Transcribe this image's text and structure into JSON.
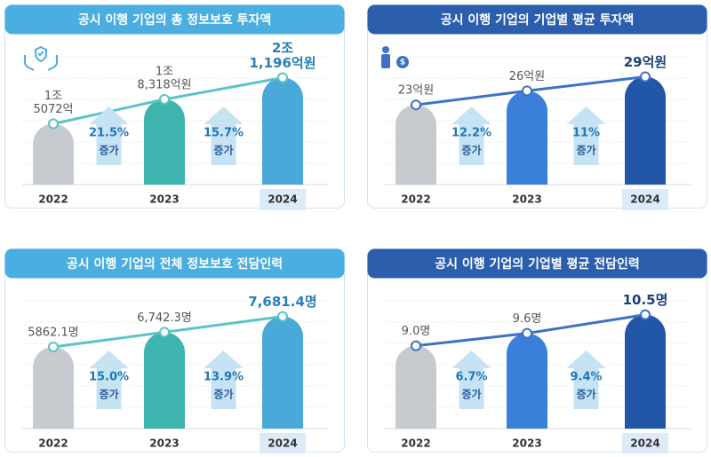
{
  "chart_data": [
    {
      "type": "bar",
      "title": "공시 이행 기업의 총 정보보호 투자액",
      "title_color": "#4aaee0",
      "line_color": "#5cc3c8",
      "highlight_color": "#2a7fb8",
      "categories": [
        "2022",
        "2023",
        "2024"
      ],
      "values": [
        15072,
        18318,
        21196
      ],
      "value_labels": [
        [
          "1조",
          "5072억"
        ],
        [
          "1조",
          "8,318억원"
        ],
        [
          "2조",
          "1,196억원"
        ]
      ],
      "colors": [
        "#c7cacf",
        "#3db5ae",
        "#4aa9d9"
      ],
      "ylim": [
        7000,
        23500
      ],
      "annotations": [
        {
          "text": "21.5%",
          "label": "증가"
        },
        {
          "text": "15.7%",
          "label": "증가"
        }
      ]
    },
    {
      "type": "bar",
      "title": "공시 이행 기업의 기업별 평균 투자액",
      "title_color": "#2b5fae",
      "line_color": "#3d72c4",
      "highlight_color": "#1c3f7a",
      "categories": [
        "2022",
        "2023",
        "2024"
      ],
      "values": [
        23,
        26,
        29
      ],
      "value_labels": [
        [
          "23억원"
        ],
        [
          "26억원"
        ],
        [
          "29억원"
        ]
      ],
      "colors": [
        "#c7cacf",
        "#3a7fd9",
        "#2256a6"
      ],
      "ylim": [
        6,
        32.5
      ],
      "annotations": [
        {
          "text": "12.2%",
          "label": "증가"
        },
        {
          "text": "11%",
          "label": "증가"
        }
      ]
    },
    {
      "type": "bar",
      "title": "공시 이행 기업의 전체 정보보호 전담인력",
      "title_color": "#4aaee0",
      "line_color": "#5cc3c8",
      "highlight_color": "#2a7fb8",
      "categories": [
        "2022",
        "2023",
        "2024"
      ],
      "values": [
        5862.1,
        6742.3,
        7681.4
      ],
      "value_labels": [
        [
          "5862.1명"
        ],
        [
          "6,742.3명"
        ],
        [
          "7,681.4명"
        ]
      ],
      "colors": [
        "#c7cacf",
        "#3db5ae",
        "#4aa9d9"
      ],
      "ylim": [
        1000,
        8400
      ],
      "annotations": [
        {
          "text": "15.0%",
          "label": "증가"
        },
        {
          "text": "13.9%",
          "label": "증가"
        }
      ]
    },
    {
      "type": "bar",
      "title": "공시 이행 기업의 기업별 평균 전담인력",
      "title_color": "#2b5fae",
      "line_color": "#3d72c4",
      "highlight_color": "#1c3f7a",
      "categories": [
        "2022",
        "2023",
        "2024"
      ],
      "values": [
        9.0,
        9.6,
        10.5
      ],
      "value_labels": [
        [
          "9.0명"
        ],
        [
          "9.6명"
        ],
        [
          "10.5명"
        ]
      ],
      "colors": [
        "#c7cacf",
        "#3a7fd9",
        "#2256a6"
      ],
      "ylim": [
        5,
        11
      ],
      "annotations": [
        {
          "text": "6.7%",
          "label": "증가"
        },
        {
          "text": "9.4%",
          "label": "증가"
        }
      ]
    }
  ]
}
